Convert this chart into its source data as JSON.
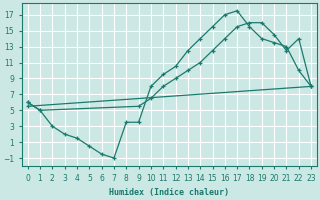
{
  "xlabel": "Humidex (Indice chaleur)",
  "bg_color": "#cce8e4",
  "grid_color": "#ffffff",
  "line_color": "#1a7a6e",
  "xlim": [
    -0.5,
    23.5
  ],
  "ylim": [
    -2.0,
    18.5
  ],
  "xticks": [
    0,
    1,
    2,
    3,
    4,
    5,
    6,
    7,
    8,
    9,
    10,
    11,
    12,
    13,
    14,
    15,
    16,
    17,
    18,
    19,
    20,
    21,
    22,
    23
  ],
  "yticks": [
    -1,
    1,
    3,
    5,
    7,
    9,
    11,
    13,
    15,
    17
  ],
  "curve1_x": [
    0,
    1,
    2,
    3,
    4,
    5,
    6,
    7,
    8,
    9,
    10,
    11,
    12,
    13,
    14,
    15,
    16,
    17,
    18,
    19,
    20,
    21,
    22,
    23
  ],
  "curve1_y": [
    6.0,
    5.0,
    3.0,
    2.0,
    1.5,
    0.5,
    -0.5,
    -1.0,
    3.5,
    3.5,
    8.0,
    9.5,
    10.5,
    12.5,
    14.0,
    15.5,
    17.0,
    17.5,
    15.5,
    14.0,
    13.5,
    13.0,
    10.0,
    8.0
  ],
  "curve2_x": [
    0,
    1,
    9,
    10,
    11,
    12,
    13,
    14,
    15,
    16,
    17,
    18,
    19,
    20,
    21,
    22,
    23
  ],
  "curve2_y": [
    6.0,
    5.0,
    5.5,
    6.5,
    8.0,
    9.0,
    10.0,
    11.0,
    12.5,
    14.0,
    15.5,
    16.0,
    16.0,
    14.5,
    12.5,
    14.0,
    8.0
  ],
  "curve3_x": [
    0,
    23
  ],
  "curve3_y": [
    5.5,
    8.0
  ]
}
